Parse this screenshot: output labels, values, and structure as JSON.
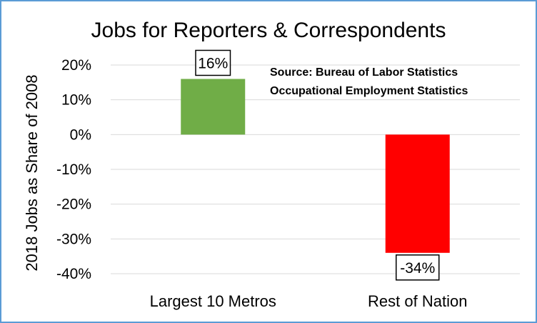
{
  "chart_data": {
    "type": "bar",
    "title": "Jobs for Reporters & Correspondents",
    "ylabel": "2018 Jobs as Share of 2008",
    "xlabel": "",
    "categories": [
      "Largest 10 Metros",
      "Rest of Nation"
    ],
    "values": [
      16,
      -34
    ],
    "data_labels": [
      "16%",
      "-34%"
    ],
    "bar_colors": [
      "#70ad47",
      "#ff0000"
    ],
    "ylim": [
      -40,
      20
    ],
    "yticks": [
      20,
      10,
      0,
      -10,
      -20,
      -30,
      -40
    ],
    "ytick_labels": [
      "20%",
      "10%",
      "0%",
      "-10%",
      "-20%",
      "-30%",
      "-40%"
    ],
    "grid": true,
    "annotation": [
      "Source: Bureau of Labor Statistics",
      "Occupational Employment Statistics"
    ]
  }
}
